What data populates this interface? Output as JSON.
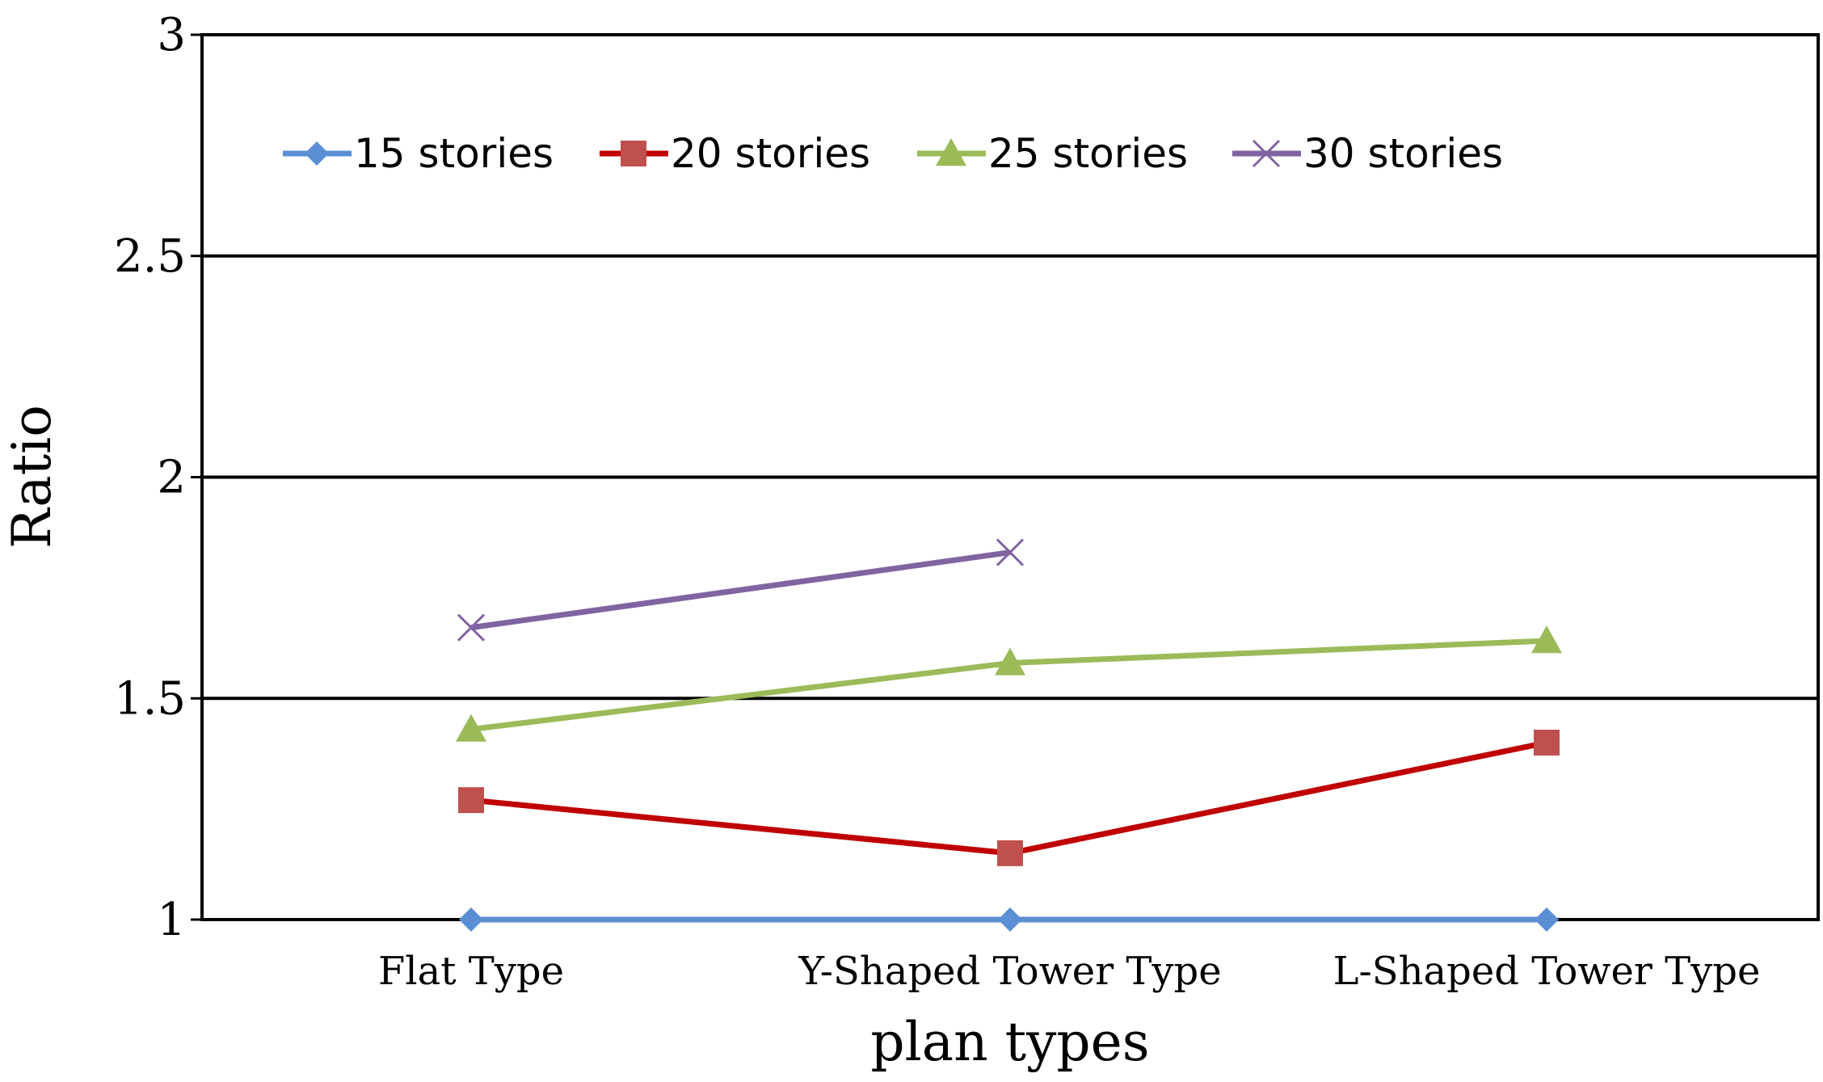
{
  "chart_data": {
    "type": "line",
    "title": "",
    "xlabel": "plan types",
    "ylabel": "Ratio",
    "categories": [
      "Flat Type",
      "Y-Shaped Tower Type",
      "L-Shaped Tower Type"
    ],
    "ylim": [
      1,
      3
    ],
    "yticks": [
      1,
      1.5,
      2,
      2.5,
      3
    ],
    "ytick_labels": [
      "1",
      "1.5",
      "2",
      "2.5",
      "3"
    ],
    "grid": true,
    "legend_position": "top",
    "series": [
      {
        "name": "15 stories",
        "values": [
          1.0,
          1.0,
          1.0
        ],
        "color": "#5B8FD4",
        "marker": "diamond"
      },
      {
        "name": "20 stories",
        "values": [
          1.27,
          1.15,
          1.4
        ],
        "color": "#C00000",
        "marker_color": "#C0504D",
        "marker": "square"
      },
      {
        "name": "25 stories",
        "values": [
          1.43,
          1.58,
          1.63
        ],
        "color": "#9BBB59",
        "marker": "triangle"
      },
      {
        "name": "30 stories",
        "values": [
          1.66,
          1.83,
          null
        ],
        "color": "#8064A2",
        "marker": "x"
      }
    ]
  }
}
